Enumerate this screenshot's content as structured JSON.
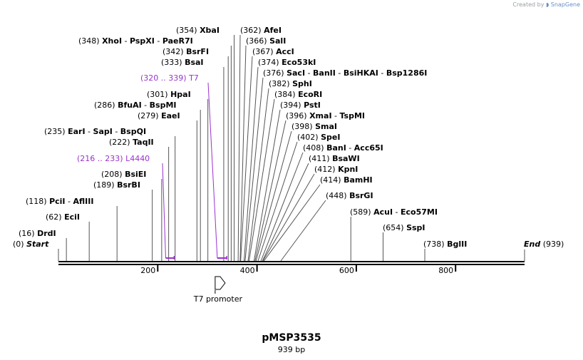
{
  "credit": {
    "prefix": "Created by",
    "brand": "SnapGene"
  },
  "map": {
    "name": "pMSP3535",
    "length_label": "939 bp",
    "length": 939,
    "ticks": [
      {
        "pos": 200,
        "label": "200"
      },
      {
        "pos": 400,
        "label": "400"
      },
      {
        "pos": 600,
        "label": "600"
      },
      {
        "pos": 800,
        "label": "800"
      }
    ]
  },
  "colors": {
    "line": "#000000",
    "feature": "#9a32cd",
    "connector": "#555555"
  },
  "sites": [
    {
      "pos": 0,
      "pos_text": "(0)",
      "names": [
        "Start"
      ],
      "italic": true
    },
    {
      "pos": 16,
      "pos_text": "(16)",
      "names": [
        "DrdI"
      ]
    },
    {
      "pos": 62,
      "pos_text": "(62)",
      "names": [
        "EciI"
      ]
    },
    {
      "pos": 118,
      "pos_text": "(118)",
      "names": [
        "PciI",
        "AflIII"
      ]
    },
    {
      "pos": 189,
      "pos_text": "(189)",
      "names": [
        "BsrBI"
      ]
    },
    {
      "pos": 208,
      "pos_text": "(208)",
      "names": [
        "BsiEI"
      ]
    },
    {
      "pos": 222,
      "pos_text": "(222)",
      "names": [
        "TaqII"
      ]
    },
    {
      "pos": 235,
      "pos_text": "(235)",
      "names": [
        "EarI",
        "SapI",
        "BspQI"
      ]
    },
    {
      "pos": 279,
      "pos_text": "(279)",
      "names": [
        "EaeI"
      ]
    },
    {
      "pos": 286,
      "pos_text": "(286)",
      "names": [
        "BfuAI",
        "BspMI"
      ]
    },
    {
      "pos": 301,
      "pos_text": "(301)",
      "names": [
        "HpaI"
      ]
    },
    {
      "pos": 333,
      "pos_text": "(333)",
      "names": [
        "BsaI"
      ]
    },
    {
      "pos": 342,
      "pos_text": "(342)",
      "names": [
        "BsrFI"
      ]
    },
    {
      "pos": 348,
      "pos_text": "(348)",
      "names": [
        "XhoI",
        "PspXI",
        "PaeR7I"
      ]
    },
    {
      "pos": 354,
      "pos_text": "(354)",
      "names": [
        "XbaI"
      ]
    },
    {
      "pos": 362,
      "pos_text": "(362)",
      "names": [
        "AfeI"
      ]
    },
    {
      "pos": 366,
      "pos_text": "(366)",
      "names": [
        "SalI"
      ]
    },
    {
      "pos": 367,
      "pos_text": "(367)",
      "names": [
        "AccI"
      ]
    },
    {
      "pos": 374,
      "pos_text": "(374)",
      "names": [
        "Eco53kI"
      ]
    },
    {
      "pos": 376,
      "pos_text": "(376)",
      "names": [
        "SacI",
        "BanII",
        "BsiHKAI",
        "Bsp1286I"
      ]
    },
    {
      "pos": 382,
      "pos_text": "(382)",
      "names": [
        "SphI"
      ]
    },
    {
      "pos": 384,
      "pos_text": "(384)",
      "names": [
        "EcoRI"
      ]
    },
    {
      "pos": 394,
      "pos_text": "(394)",
      "names": [
        "PstI"
      ]
    },
    {
      "pos": 396,
      "pos_text": "(396)",
      "names": [
        "XmaI",
        "TspMI"
      ]
    },
    {
      "pos": 398,
      "pos_text": "(398)",
      "names": [
        "SmaI"
      ]
    },
    {
      "pos": 402,
      "pos_text": "(402)",
      "names": [
        "SpeI"
      ]
    },
    {
      "pos": 408,
      "pos_text": "(408)",
      "names": [
        "BanI",
        "Acc65I"
      ]
    },
    {
      "pos": 411,
      "pos_text": "(411)",
      "names": [
        "BsaWI"
      ]
    },
    {
      "pos": 412,
      "pos_text": "(412)",
      "names": [
        "KpnI"
      ]
    },
    {
      "pos": 414,
      "pos_text": "(414)",
      "names": [
        "BamHI"
      ]
    },
    {
      "pos": 448,
      "pos_text": "(448)",
      "names": [
        "BsrGI"
      ]
    },
    {
      "pos": 589,
      "pos_text": "(589)",
      "names": [
        "AcuI",
        "Eco57MI"
      ]
    },
    {
      "pos": 654,
      "pos_text": "(654)",
      "names": [
        "SspI"
      ]
    },
    {
      "pos": 738,
      "pos_text": "(738)",
      "names": [
        "BglII"
      ]
    },
    {
      "pos": 939,
      "pos_text": "(939)",
      "names": [
        "End"
      ],
      "italic": true
    }
  ],
  "primers": [
    {
      "name": "L4440",
      "range_text": "(216 .. 233)",
      "start": 216,
      "end": 233
    },
    {
      "name": "T7",
      "range_text": "(320 .. 339)",
      "start": 320,
      "end": 339
    }
  ],
  "features": [
    {
      "name": "T7 promoter",
      "start": 320,
      "end": 339,
      "direction": "forward"
    }
  ]
}
